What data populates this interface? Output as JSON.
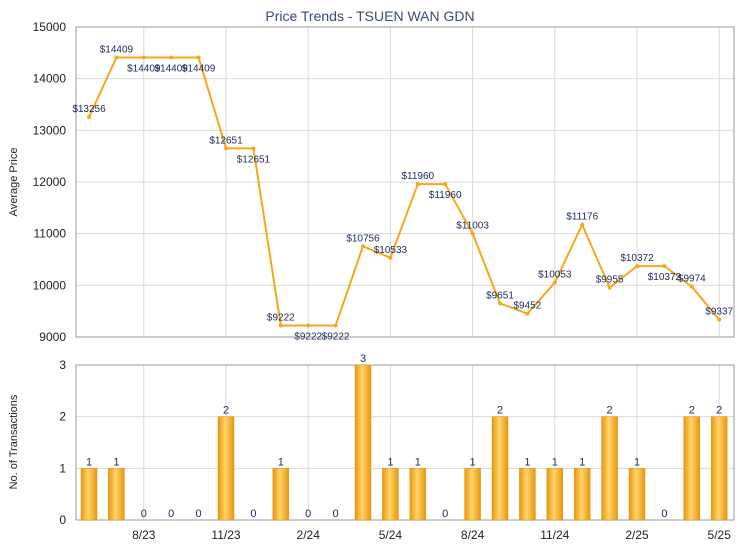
{
  "chart_data": [
    {
      "type": "line",
      "title": "Price Trends - TSUEN WAN GDN",
      "ylabel": "Average Price",
      "ylim": [
        9000,
        15000
      ],
      "yticks": [
        9000,
        10000,
        11000,
        12000,
        13000,
        14000,
        15000
      ],
      "grid": true,
      "series": [
        {
          "x": [
            "2023-06",
            "2023-07",
            "2023-08",
            "2023-09",
            "2023-10",
            "2023-11",
            "2023-12",
            "2024-01",
            "2024-02",
            "2024-03",
            "2024-04",
            "2024-05",
            "2024-06",
            "2024-07",
            "2024-08",
            "2024-09",
            "2024-10",
            "2024-11",
            "2024-12",
            "2025-01",
            "2025-02",
            "2025-03",
            "2025-04",
            "2025-05"
          ],
          "values": [
            13256,
            14409,
            14409,
            14409,
            14409,
            12651,
            12651,
            9222,
            9222,
            9222,
            10756,
            10533,
            11960,
            11960,
            11003,
            9651,
            9452,
            10053,
            11176,
            9955,
            10372,
            10372,
            9974,
            9337
          ],
          "labels": [
            "$13256",
            "$14409",
            "$14409",
            "$14409",
            "$14409",
            "$12651",
            "$12651",
            "$9222",
            "$9222",
            "$9222",
            "$10756",
            "$10533",
            "$11960",
            "$11960",
            "$11003",
            "$9651",
            "$9452",
            "$10053",
            "$11176",
            "$9955",
            "$10372",
            "$10372",
            "$9974",
            "$9337"
          ],
          "color": "#f5a81c"
        }
      ]
    },
    {
      "type": "bar",
      "ylabel": "No. of Transactions",
      "ylim": [
        0,
        3
      ],
      "yticks": [
        0,
        1,
        2,
        3
      ],
      "grid": true,
      "categories": [
        "2023-06",
        "2023-07",
        "2023-08",
        "2023-09",
        "2023-10",
        "2023-11",
        "2023-12",
        "2024-01",
        "2024-02",
        "2024-03",
        "2024-04",
        "2024-05",
        "2024-06",
        "2024-07",
        "2024-08",
        "2024-09",
        "2024-10",
        "2024-11",
        "2024-12",
        "2025-01",
        "2025-02",
        "2025-03",
        "2025-04",
        "2025-05"
      ],
      "values": [
        1,
        1,
        0,
        0,
        0,
        2,
        0,
        1,
        0,
        0,
        3,
        1,
        1,
        0,
        1,
        2,
        1,
        1,
        1,
        2,
        1,
        0,
        2,
        2
      ],
      "xtick_labels": [
        "8/23",
        "11/23",
        "2/24",
        "5/24",
        "8/24",
        "11/24",
        "2/25",
        "5/25"
      ],
      "xtick_positions": [
        "2023-08",
        "2023-11",
        "2024-02",
        "2024-05",
        "2024-08",
        "2024-11",
        "2025-02",
        "2025-05"
      ],
      "color": "#f5a81c"
    }
  ]
}
